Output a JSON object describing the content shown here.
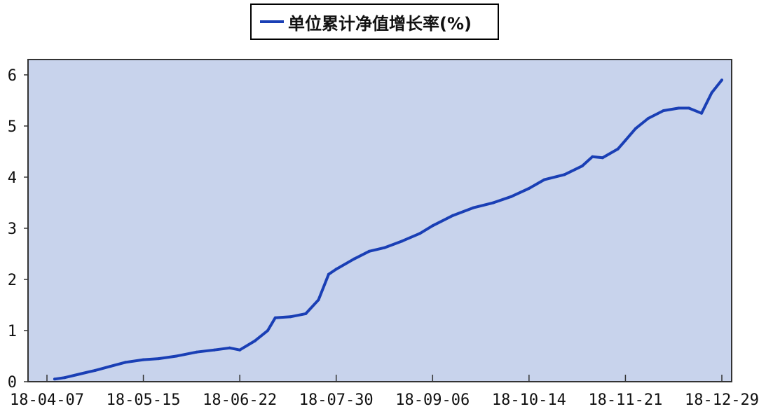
{
  "chart_data": {
    "type": "line",
    "title": "",
    "xlabel": "",
    "ylabel": "",
    "ylim": [
      0,
      6.3
    ],
    "yticks": [
      "0",
      "1",
      "2",
      "3",
      "4",
      "5",
      "6"
    ],
    "xtick_labels": [
      "18-04-07",
      "18-05-15",
      "18-06-22",
      "18-07-30",
      "18-09-06",
      "18-10-14",
      "18-11-21",
      "18-12-29"
    ],
    "grid": false,
    "legend_position": "top-center",
    "plot_background": "#c8d3ec",
    "series": [
      {
        "name": "单位累计净值增长率(%)",
        "color": "#1a3fb5",
        "x": [
          "2018-04-10",
          "2018-04-14",
          "2018-04-20",
          "2018-04-26",
          "2018-05-02",
          "2018-05-08",
          "2018-05-15",
          "2018-05-21",
          "2018-05-28",
          "2018-06-05",
          "2018-06-12",
          "2018-06-18",
          "2018-06-22",
          "2018-06-28",
          "2018-07-03",
          "2018-07-06",
          "2018-07-12",
          "2018-07-18",
          "2018-07-23",
          "2018-07-27",
          "2018-07-30",
          "2018-08-06",
          "2018-08-12",
          "2018-08-18",
          "2018-08-25",
          "2018-09-01",
          "2018-09-06",
          "2018-09-14",
          "2018-09-22",
          "2018-09-30",
          "2018-10-07",
          "2018-10-14",
          "2018-10-20",
          "2018-10-28",
          "2018-11-04",
          "2018-11-08",
          "2018-11-12",
          "2018-11-18",
          "2018-11-21",
          "2018-11-25",
          "2018-11-30",
          "2018-12-06",
          "2018-12-12",
          "2018-12-16",
          "2018-12-21",
          "2018-12-25",
          "2018-12-29"
        ],
        "values": [
          0.05,
          0.08,
          0.15,
          0.22,
          0.3,
          0.38,
          0.43,
          0.45,
          0.5,
          0.58,
          0.62,
          0.66,
          0.62,
          0.8,
          1.0,
          1.25,
          1.27,
          1.33,
          1.6,
          2.1,
          2.2,
          2.4,
          2.55,
          2.62,
          2.75,
          2.9,
          3.05,
          3.25,
          3.4,
          3.5,
          3.62,
          3.78,
          3.95,
          4.05,
          4.22,
          4.4,
          4.38,
          4.55,
          4.72,
          4.95,
          5.15,
          5.3,
          5.35,
          5.35,
          5.25,
          5.65,
          5.9
        ]
      }
    ]
  }
}
